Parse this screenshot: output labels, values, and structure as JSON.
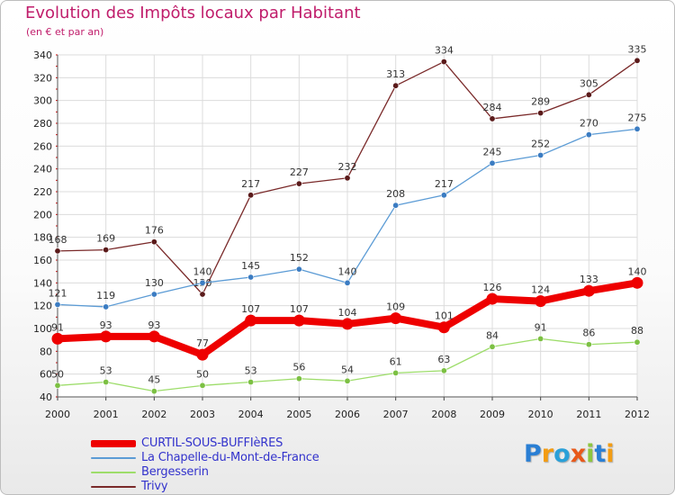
{
  "header": {
    "title": "Evolution des Impôts locaux par Habitant",
    "subtitle": "(en € et par an)"
  },
  "logo": {
    "letters": [
      {
        "ch": "P",
        "color": "#2a7fd4"
      },
      {
        "ch": "r",
        "color": "#f39c12"
      },
      {
        "ch": "o",
        "color": "#2aa0d8"
      },
      {
        "ch": "x",
        "color": "#e8591a"
      },
      {
        "ch": "i",
        "color": "#8dc63f"
      },
      {
        "ch": "t",
        "color": "#2a7fd4"
      },
      {
        "ch": "i",
        "color": "#f39c12"
      }
    ]
  },
  "chart_data": {
    "type": "line",
    "title": "Evolution des Impôts locaux par Habitant",
    "subtitle": "(en € et par an)",
    "x": [
      2000,
      2001,
      2002,
      2003,
      2004,
      2005,
      2006,
      2007,
      2008,
      2009,
      2010,
      2011,
      2012
    ],
    "ylim": [
      40,
      340
    ],
    "yticks": [
      40,
      60,
      80,
      100,
      120,
      140,
      160,
      180,
      200,
      220,
      240,
      260,
      280,
      300,
      320,
      340
    ],
    "grid": true,
    "legend_position": "bottom-left",
    "series": [
      {
        "name": "CURTIL-SOUS-BUFFIèRES",
        "color": "#ee0000",
        "emphasis": true,
        "values": [
          91,
          93,
          93,
          77,
          107,
          107,
          104,
          109,
          101,
          126,
          124,
          133,
          140
        ]
      },
      {
        "name": "La Chapelle-du-Mont-de-France",
        "color": "#5b9bd5",
        "emphasis": false,
        "values": [
          121,
          119,
          130,
          140,
          145,
          152,
          140,
          208,
          217,
          245,
          252,
          270,
          275
        ]
      },
      {
        "name": "Bergesserin",
        "color": "#9ddd6a",
        "emphasis": false,
        "values": [
          50,
          53,
          45,
          50,
          53,
          56,
          54,
          61,
          63,
          84,
          91,
          86,
          88
        ]
      },
      {
        "name": "Trivy",
        "color": "#7a2a2a",
        "emphasis": false,
        "values": [
          168,
          169,
          176,
          130,
          217,
          227,
          232,
          313,
          334,
          284,
          289,
          305,
          335
        ]
      }
    ]
  }
}
